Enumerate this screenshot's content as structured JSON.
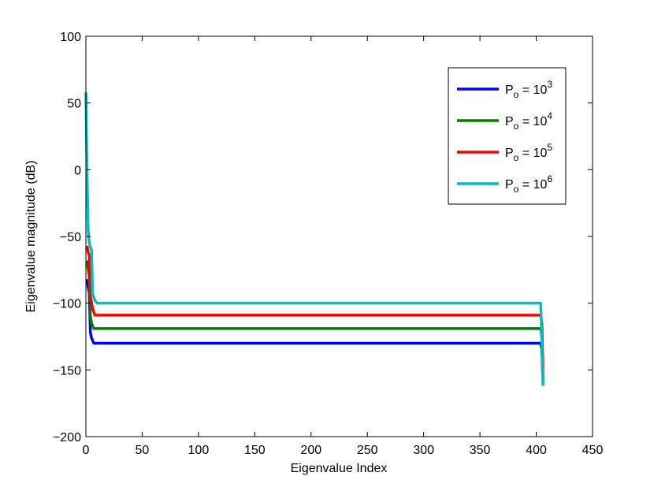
{
  "chart_data": {
    "type": "line",
    "title": "",
    "xlabel": "Eigenvalue Index",
    "ylabel": "Eigenvalue magnitude (dB)",
    "xlim": [
      0,
      450
    ],
    "ylim": [
      -200,
      100
    ],
    "xticks": [
      0,
      50,
      100,
      150,
      200,
      250,
      300,
      350,
      400,
      450
    ],
    "yticks": [
      100,
      50,
      0,
      -50,
      -100,
      -150,
      -200
    ],
    "ytick_labels": [
      "100",
      "50",
      "0",
      "−50",
      "−100",
      "−150",
      "−200"
    ],
    "grid": false,
    "legend_position": "top-right",
    "series": [
      {
        "name": "P_o = 10^3",
        "label_base": "P",
        "label_sub": "o",
        "label_mid": " = 10",
        "label_sup": "3",
        "color": "#0000ff",
        "points": [
          [
            1,
            -82
          ],
          [
            2,
            -88
          ],
          [
            3,
            -92
          ],
          [
            4,
            -122
          ],
          [
            5,
            -126
          ],
          [
            7,
            -130
          ],
          [
            10,
            -130
          ],
          [
            100,
            -130
          ],
          [
            200,
            -130
          ],
          [
            300,
            -130
          ],
          [
            404,
            -130
          ],
          [
            405,
            -135
          ],
          [
            406,
            -160
          ]
        ]
      },
      {
        "name": "P_o = 10^4",
        "label_base": "P",
        "label_sub": "o",
        "label_mid": " = 10",
        "label_sup": "4",
        "color": "#008000",
        "points": [
          [
            1,
            -68
          ],
          [
            2,
            -74
          ],
          [
            3,
            -80
          ],
          [
            4,
            -110
          ],
          [
            5,
            -115
          ],
          [
            7,
            -119
          ],
          [
            10,
            -119
          ],
          [
            100,
            -119
          ],
          [
            200,
            -119
          ],
          [
            300,
            -119
          ],
          [
            404,
            -119
          ],
          [
            405,
            -125
          ],
          [
            406,
            -155
          ]
        ]
      },
      {
        "name": "P_o = 10^5",
        "label_base": "P",
        "label_sub": "o",
        "label_mid": " = 10",
        "label_sup": "5",
        "color": "#ff0000",
        "points": [
          [
            1,
            -57
          ],
          [
            2,
            -62
          ],
          [
            3,
            -64
          ],
          [
            4,
            -95
          ],
          [
            6,
            -104
          ],
          [
            8,
            -109
          ],
          [
            10,
            -109
          ],
          [
            100,
            -109
          ],
          [
            200,
            -109
          ],
          [
            300,
            -109
          ],
          [
            404,
            -109
          ],
          [
            405,
            -115
          ],
          [
            406,
            -150
          ]
        ]
      },
      {
        "name": "P_o = 10^6",
        "label_base": "P",
        "label_sub": "o",
        "label_mid": " = 10",
        "label_sup": "6",
        "color": "#00bfbf",
        "points": [
          [
            0,
            58
          ],
          [
            1,
            0
          ],
          [
            2,
            -45
          ],
          [
            3,
            -55
          ],
          [
            4,
            -58
          ],
          [
            5,
            -60
          ],
          [
            6,
            -93
          ],
          [
            8,
            -98
          ],
          [
            10,
            -100
          ],
          [
            100,
            -100
          ],
          [
            200,
            -100
          ],
          [
            300,
            -100
          ],
          [
            404,
            -100
          ],
          [
            405,
            -130
          ],
          [
            406,
            -162
          ]
        ]
      }
    ]
  }
}
